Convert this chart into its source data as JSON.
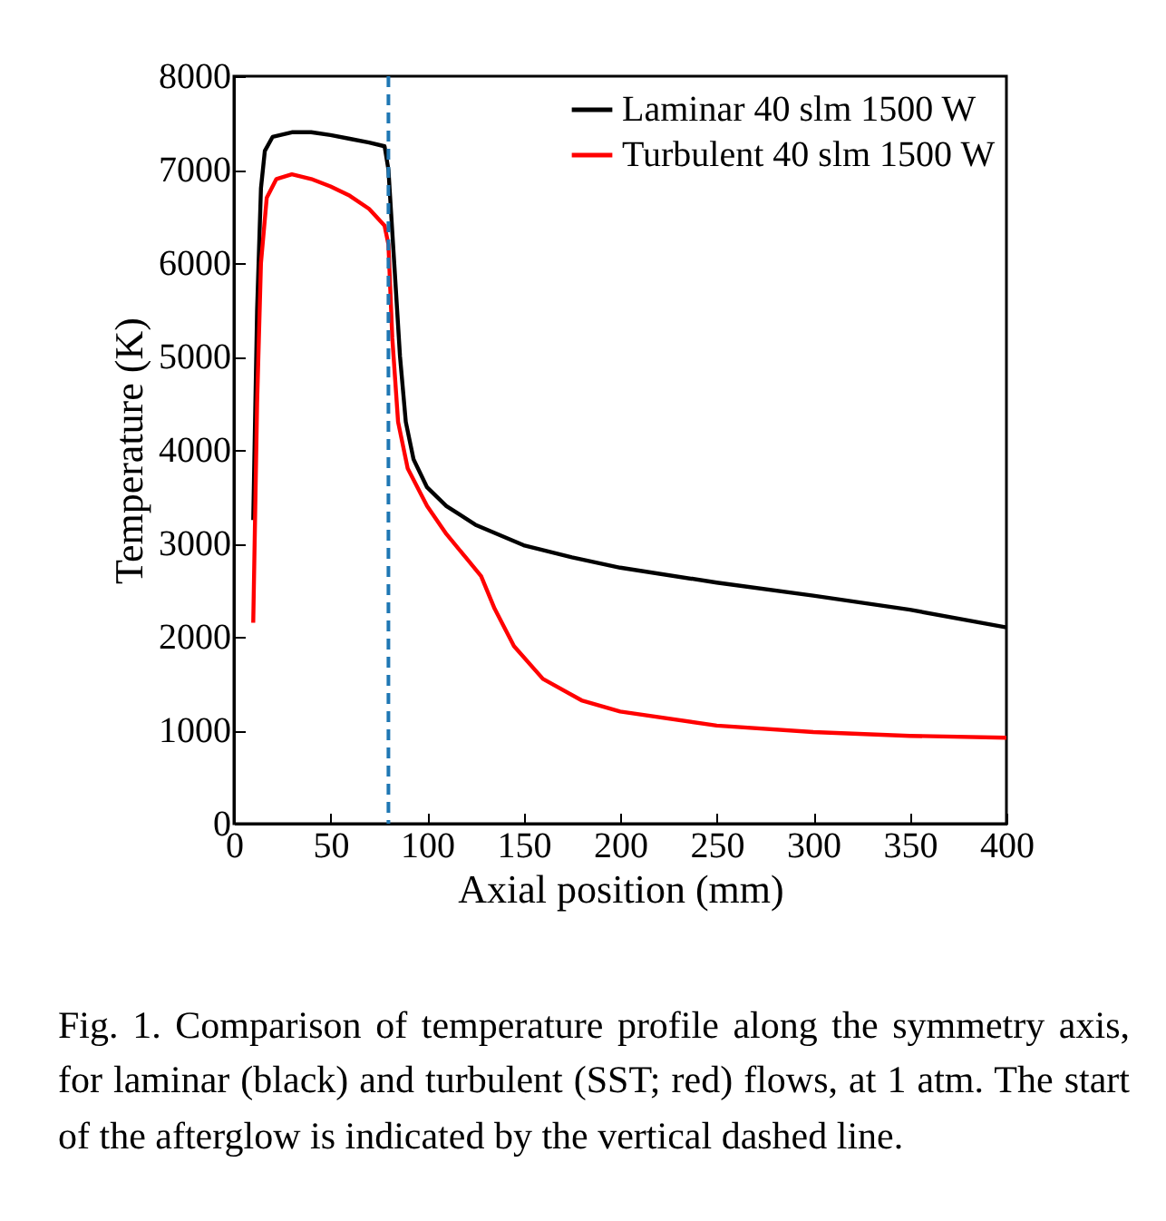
{
  "chart_data": {
    "type": "line",
    "xlabel": "Axial position (mm)",
    "ylabel": "Temperature (K)",
    "xlim": [
      0,
      400
    ],
    "xticks": [
      0,
      50,
      100,
      150,
      200,
      250,
      300,
      350,
      400
    ],
    "ylim": [
      0,
      8000
    ],
    "yticks": [
      0,
      1000,
      2000,
      3000,
      4000,
      5000,
      6000,
      7000,
      8000
    ],
    "grid": false,
    "legend": "top right",
    "line_style": "solid",
    "series": [
      {
        "name": "Laminar 40 slm 1500 W",
        "color": "#000000",
        "x": [
          10,
          12,
          14,
          16,
          20,
          30,
          40,
          50,
          60,
          70,
          78,
          80,
          83,
          86,
          89,
          93,
          100,
          110,
          125,
          150,
          175,
          200,
          250,
          300,
          350,
          400
        ],
        "values": [
          3250,
          5500,
          6800,
          7200,
          7350,
          7400,
          7400,
          7370,
          7330,
          7290,
          7250,
          7000,
          6000,
          5000,
          4300,
          3900,
          3600,
          3400,
          3200,
          2980,
          2850,
          2740,
          2580,
          2440,
          2290,
          2100
        ]
      },
      {
        "name": "Turbulent 40 slm 1500 W",
        "color": "#ff0000",
        "x": [
          10,
          12,
          14,
          17,
          22,
          30,
          40,
          50,
          60,
          70,
          78,
          80,
          82,
          85,
          90,
          100,
          110,
          120,
          128,
          135,
          145,
          160,
          180,
          200,
          250,
          300,
          350,
          400
        ],
        "values": [
          2150,
          4500,
          6000,
          6700,
          6900,
          6950,
          6900,
          6820,
          6720,
          6580,
          6400,
          6200,
          5200,
          4300,
          3800,
          3400,
          3100,
          2850,
          2650,
          2300,
          1900,
          1550,
          1320,
          1200,
          1050,
          980,
          940,
          920
        ]
      }
    ],
    "ref_lines": [
      {
        "axis": "x",
        "value": 80,
        "color": "#1f77b4",
        "line_style": "dashed"
      }
    ],
    "annotations": [
      "Fig. 1. Comparison of temperature profile along the symmetry axis, for laminar (black) and turbulent (SST; red) flows, at 1 atm. The start of the afterglow is indicated by the vertical dashed line."
    ]
  }
}
